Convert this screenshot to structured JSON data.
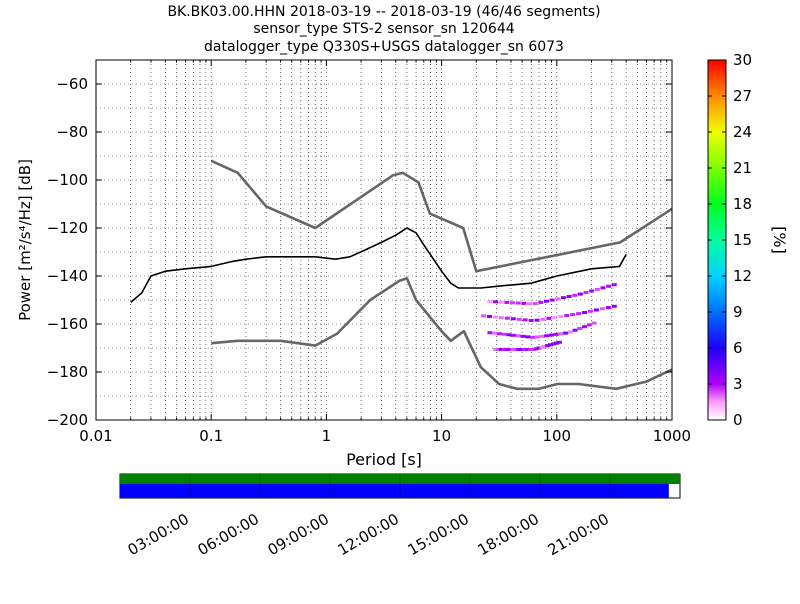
{
  "title": {
    "line1": "BK.BK03.00.HHN   2018-03-19 -- 2018-03-19  (46/46 segments)",
    "line2": "sensor_type STS-2 sensor_sn 120644",
    "line3": "datalogger_type Q330S+USGS datalogger_sn 6073"
  },
  "chart_data": {
    "type": "heatmap",
    "xlabel": "Period [s]",
    "ylabel": "Power [m²/s⁴/Hz] [dB]",
    "xscale": "log",
    "xlim": [
      0.01,
      1000
    ],
    "ylim": [
      -200,
      -50
    ],
    "xticks": [
      {
        "value": 0.01,
        "label": "0.01"
      },
      {
        "value": 0.1,
        "label": "0.1"
      },
      {
        "value": 1,
        "label": "1"
      },
      {
        "value": 10,
        "label": "10"
      },
      {
        "value": 100,
        "label": "100"
      },
      {
        "value": 1000,
        "label": "1000"
      }
    ],
    "yticks": [
      -200,
      -180,
      -160,
      -140,
      -120,
      -100,
      -80,
      -60
    ],
    "grid": "dotted at minor log ticks",
    "colorbar": {
      "label": "[%]",
      "min": 0,
      "max": 30,
      "ticks": [
        0,
        3,
        6,
        9,
        12,
        15,
        18,
        21,
        24,
        27,
        30
      ]
    },
    "noise_model_high": [
      [
        0.1,
        -92
      ],
      [
        0.17,
        -97
      ],
      [
        0.3,
        -111
      ],
      [
        0.8,
        -120
      ],
      [
        3.8,
        -98
      ],
      [
        4.6,
        -97
      ],
      [
        6.3,
        -101
      ],
      [
        7.9,
        -114
      ],
      [
        15.4,
        -120
      ],
      [
        20,
        -138
      ],
      [
        354.8,
        -126
      ],
      [
        1000,
        -112
      ]
    ],
    "noise_model_low": [
      [
        0.1,
        -168
      ],
      [
        0.17,
        -167
      ],
      [
        0.4,
        -167
      ],
      [
        0.8,
        -169
      ],
      [
        1.24,
        -164
      ],
      [
        2.4,
        -150
      ],
      [
        4.3,
        -142
      ],
      [
        5,
        -141
      ],
      [
        6,
        -150
      ],
      [
        10,
        -163
      ],
      [
        12,
        -167
      ],
      [
        15.6,
        -163
      ],
      [
        21.9,
        -178
      ],
      [
        31.6,
        -185
      ],
      [
        45,
        -187
      ],
      [
        70,
        -187
      ],
      [
        101,
        -185
      ],
      [
        154,
        -185
      ],
      [
        328,
        -187
      ],
      [
        600,
        -184
      ],
      [
        1000,
        -179
      ]
    ],
    "median": [
      [
        0.02,
        -151
      ],
      [
        0.025,
        -147
      ],
      [
        0.03,
        -140
      ],
      [
        0.04,
        -138
      ],
      [
        0.06,
        -137
      ],
      [
        0.1,
        -136
      ],
      [
        0.15,
        -134
      ],
      [
        0.2,
        -133
      ],
      [
        0.3,
        -132
      ],
      [
        0.5,
        -132
      ],
      [
        0.8,
        -132
      ],
      [
        1.2,
        -133
      ],
      [
        1.6,
        -132
      ],
      [
        2.2,
        -129
      ],
      [
        3,
        -126
      ],
      [
        4,
        -123
      ],
      [
        5,
        -120
      ],
      [
        6,
        -122
      ],
      [
        7,
        -127
      ],
      [
        8.5,
        -133
      ],
      [
        10,
        -138
      ],
      [
        12,
        -143
      ],
      [
        14,
        -145
      ],
      [
        17,
        -145
      ],
      [
        22,
        -145
      ],
      [
        35,
        -144
      ],
      [
        60,
        -143
      ],
      [
        100,
        -140
      ],
      [
        200,
        -137
      ],
      [
        350,
        -136
      ],
      [
        400,
        -131
      ]
    ],
    "spread_upper": [
      [
        0.02,
        -148
      ],
      [
        0.03,
        -135
      ],
      [
        0.05,
        -128
      ],
      [
        0.08,
        -125
      ],
      [
        0.12,
        -128
      ],
      [
        0.2,
        -126
      ],
      [
        0.3,
        -122
      ],
      [
        0.5,
        -124
      ],
      [
        0.8,
        -127
      ],
      [
        1.2,
        -130
      ],
      [
        1.6,
        -130
      ],
      [
        2.2,
        -126
      ],
      [
        3,
        -123
      ],
      [
        4,
        -121
      ],
      [
        5,
        -118
      ],
      [
        6,
        -119
      ],
      [
        7,
        -123
      ],
      [
        8.5,
        -128
      ],
      [
        10,
        -134
      ],
      [
        12,
        -140
      ],
      [
        14,
        -142
      ],
      [
        20,
        -142
      ],
      [
        40,
        -138
      ],
      [
        80,
        -134
      ],
      [
        150,
        -131
      ],
      [
        300,
        -129
      ],
      [
        400,
        -125
      ],
      [
        600,
        -124
      ]
    ],
    "spread_lower": [
      [
        0.02,
        -155
      ],
      [
        0.03,
        -147
      ],
      [
        0.05,
        -145
      ],
      [
        0.08,
        -144
      ],
      [
        0.12,
        -142
      ],
      [
        0.2,
        -141
      ],
      [
        0.3,
        -140
      ],
      [
        0.5,
        -139
      ],
      [
        0.8,
        -138
      ],
      [
        1.2,
        -137
      ],
      [
        1.6,
        -134
      ],
      [
        2.2,
        -132
      ],
      [
        3,
        -129
      ],
      [
        4,
        -126
      ],
      [
        5,
        -124
      ],
      [
        6,
        -126
      ],
      [
        7,
        -132
      ],
      [
        8.5,
        -138
      ],
      [
        10,
        -143
      ],
      [
        12,
        -147
      ],
      [
        14,
        -148
      ],
      [
        20,
        -150
      ],
      [
        40,
        -153
      ],
      [
        80,
        -152
      ],
      [
        150,
        -150
      ],
      [
        300,
        -148
      ],
      [
        400,
        -147
      ],
      [
        600,
        -143
      ]
    ],
    "outlier_tracks": [
      [
        [
          25,
          -150
        ],
        [
          60,
          -151
        ],
        [
          150,
          -147
        ],
        [
          300,
          -143
        ]
      ],
      [
        [
          22,
          -156
        ],
        [
          60,
          -158
        ],
        [
          150,
          -155
        ],
        [
          300,
          -152
        ]
      ],
      [
        [
          25,
          -163
        ],
        [
          60,
          -165
        ],
        [
          120,
          -163
        ],
        [
          200,
          -159
        ]
      ],
      [
        [
          28,
          -170
        ],
        [
          60,
          -170
        ],
        [
          100,
          -167
        ]
      ]
    ]
  },
  "timeline": {
    "labels": [
      "03:00:00",
      "06:00:00",
      "09:00:00",
      "12:00:00",
      "15:00:00",
      "18:00:00",
      "21:00:00"
    ],
    "hours": [
      3,
      6,
      9,
      12,
      15,
      18,
      21
    ],
    "span_hours": 24,
    "coverage_fraction": 0.98,
    "top_color": "#008000",
    "bottom_color": "#0000ff"
  },
  "colors": {
    "noise_model": "#666666",
    "median": "#000000"
  }
}
